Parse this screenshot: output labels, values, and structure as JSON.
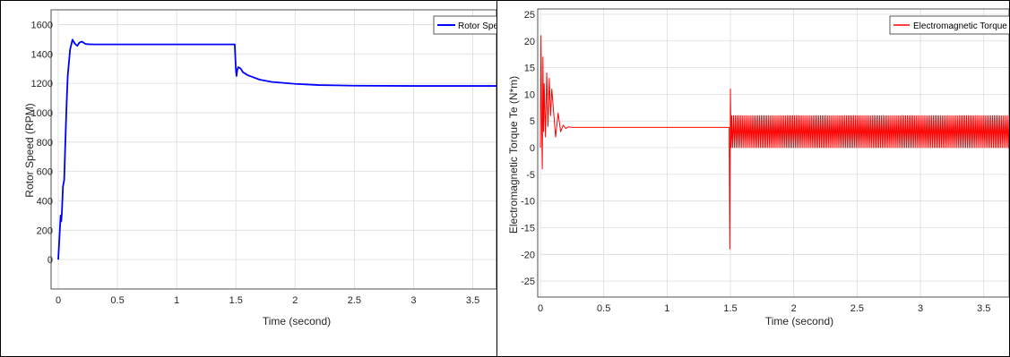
{
  "chart_data": [
    {
      "type": "line",
      "xlabel": "Time (second)",
      "ylabel": "Rotor Speed (RPM)",
      "xlim": [
        0,
        3.7
      ],
      "ylim": [
        -200,
        1700
      ],
      "xticks": [
        0,
        0.5,
        1,
        1.5,
        2,
        2.5,
        3,
        3.5
      ],
      "xtick_labels": [
        "0",
        "0.5",
        "1",
        "1.5",
        "2",
        "2.5",
        "3",
        "3.5"
      ],
      "yticks": [
        0,
        200,
        400,
        600,
        800,
        1000,
        1200,
        1400,
        1600
      ],
      "ytick_labels": [
        "0",
        "200",
        "400",
        "600",
        "800",
        "1000",
        "1200",
        "1400",
        "1600"
      ],
      "grid": true,
      "legend_position": "top-right",
      "series": [
        {
          "name": "Rotor Speed",
          "color": "#0000ff",
          "x": [
            0,
            0.01,
            0.02,
            0.025,
            0.03,
            0.04,
            0.05,
            0.06,
            0.07,
            0.08,
            0.1,
            0.12,
            0.14,
            0.16,
            0.18,
            0.2,
            0.23,
            0.26,
            0.3,
            0.5,
            1.0,
            1.49,
            1.5,
            1.505,
            1.51,
            1.52,
            1.54,
            1.56,
            1.6,
            1.7,
            1.8,
            2.0,
            2.2,
            2.5,
            3.0,
            3.7
          ],
          "y": [
            0,
            150,
            300,
            260,
            310,
            500,
            540,
            800,
            1050,
            1250,
            1430,
            1497,
            1470,
            1455,
            1478,
            1484,
            1468,
            1466,
            1465,
            1465,
            1465,
            1465,
            1290,
            1250,
            1285,
            1310,
            1300,
            1275,
            1255,
            1225,
            1210,
            1196,
            1188,
            1184,
            1182,
            1182
          ]
        }
      ]
    },
    {
      "type": "line",
      "xlabel": "Time (second)",
      "ylabel": "Electromagnetic Torque Te (N*m)",
      "xlim": [
        0,
        3.7
      ],
      "ylim": [
        -28,
        26
      ],
      "xticks": [
        0,
        0.5,
        1,
        1.5,
        2,
        2.5,
        3,
        3.5
      ],
      "xtick_labels": [
        "0",
        "0.5",
        "1",
        "1.5",
        "2",
        "2.5",
        "3",
        "3.5"
      ],
      "yticks": [
        25,
        20,
        15,
        10,
        5,
        0,
        -5,
        -10,
        -15,
        -20,
        -25
      ],
      "ytick_labels": [
        "25",
        "20",
        "15",
        "10",
        "5",
        "0",
        "-5",
        "-10",
        "-15",
        "-20",
        "-25"
      ],
      "grid": true,
      "legend_position": "top-right",
      "series": [
        {
          "name": "Electromagnetic Torque Te",
          "color": "#ff0000",
          "x": [
            0,
            0.005,
            0.01,
            0.015,
            0.02,
            0.025,
            0.03,
            0.04,
            0.05,
            0.06,
            0.07,
            0.08,
            0.09,
            0.1,
            0.12,
            0.14,
            0.16,
            0.18,
            0.2,
            0.22,
            0.25,
            0.3,
            0.6,
            1.0,
            1.49,
            1.495,
            1.5,
            1.505,
            1.51
          ],
          "y": [
            0,
            21,
            5,
            -4,
            17,
            3,
            12,
            2,
            14,
            4,
            13,
            6,
            11,
            8,
            2,
            6.5,
            3,
            4.2,
            3.6,
            3.9,
            3.8,
            3.8,
            3.8,
            3.8,
            3.8,
            -19,
            11,
            0,
            3.8
          ],
          "oscillation": {
            "x_start": 1.51,
            "x_end": 3.7,
            "y_min": 0,
            "y_max": 6
          }
        }
      ]
    }
  ]
}
